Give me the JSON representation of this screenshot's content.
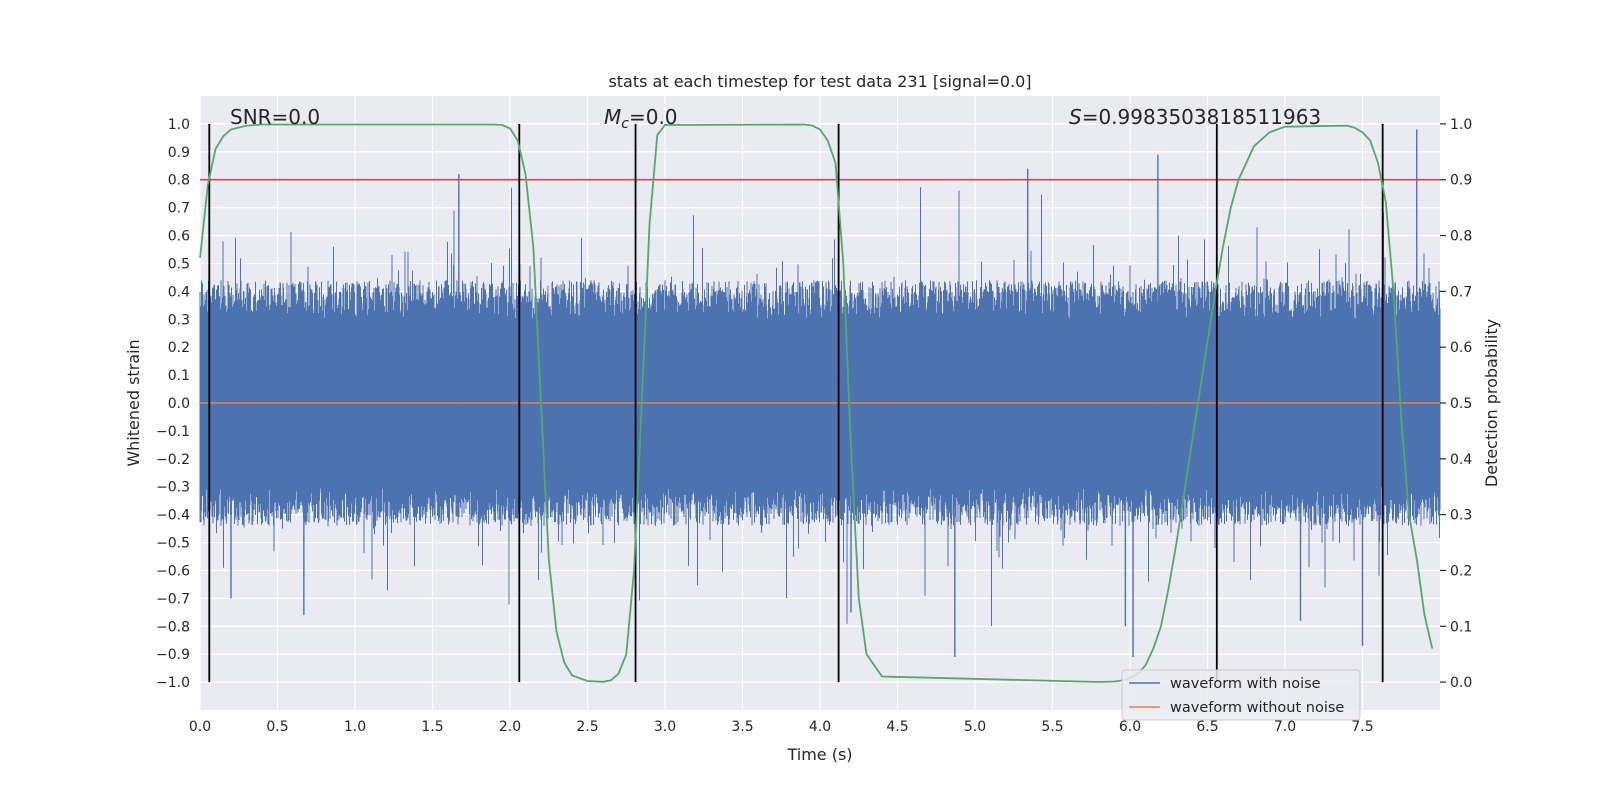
{
  "chart_data": {
    "type": "line",
    "title": "stats at each timestep for test data 231 [signal=0.0]",
    "xlabel": "Time (s)",
    "ylabel": "Whitened strain",
    "y2label": "Detection probability",
    "xlim": [
      0.0,
      8.0
    ],
    "ylim": [
      -1.1,
      1.1
    ],
    "y2lim": [
      -0.05,
      1.05
    ],
    "x_ticks": [
      0.0,
      0.5,
      1.0,
      1.5,
      2.0,
      2.5,
      3.0,
      3.5,
      4.0,
      4.5,
      5.0,
      5.5,
      6.0,
      6.5,
      7.0,
      7.5
    ],
    "x_tick_labels": [
      "0.0",
      "0.5",
      "1.0",
      "1.5",
      "2.0",
      "2.5",
      "3.0",
      "3.5",
      "4.0",
      "4.5",
      "5.0",
      "5.5",
      "6.0",
      "6.5",
      "7.0",
      "7.5"
    ],
    "y_ticks": [
      1.0,
      0.9,
      0.8,
      0.7,
      0.6,
      0.5,
      0.4,
      0.3,
      0.2,
      0.1,
      0.0,
      -0.1,
      -0.2,
      -0.3,
      -0.4,
      -0.5,
      -0.6,
      -0.7,
      -0.8,
      -0.9,
      -1.0
    ],
    "y_tick_labels": [
      "1.0",
      "0.9",
      "0.8",
      "0.7",
      "0.6",
      "0.5",
      "0.4",
      "0.3",
      "0.2",
      "0.1",
      "0.0",
      "−0.1",
      "−0.2",
      "−0.3",
      "−0.4",
      "−0.5",
      "−0.6",
      "−0.7",
      "−0.8",
      "−0.9",
      "−1.0"
    ],
    "y2_ticks": [
      1.0,
      0.9,
      0.8,
      0.7,
      0.6,
      0.5,
      0.4,
      0.3,
      0.2,
      0.1,
      0.0
    ],
    "y2_tick_labels": [
      "1.0",
      "0.9",
      "0.8",
      "0.7",
      "0.6",
      "0.5",
      "0.4",
      "0.3",
      "0.2",
      "0.1",
      "0.0"
    ],
    "annotations": {
      "snr": "SNR=0.0",
      "mc_symbol": "M",
      "mc_sub": "c",
      "mc_value": "=0.0",
      "s_symbol": "S",
      "s_value": "=0.9983503818511963"
    },
    "threshold_line": {
      "y2": 0.9,
      "color": "#c44e52"
    },
    "vertical_lines_x": [
      0.06,
      2.06,
      2.81,
      4.12,
      6.56,
      7.63
    ],
    "noise_series": {
      "name": "waveform with noise",
      "color": "#4c72b0",
      "description": "dense noise roughly within ±0.4 with spikes up to ~0.98 and down to ~−0.91",
      "envelope": 0.4,
      "spikes": [
        {
          "x": 1.67,
          "y": 0.82
        },
        {
          "x": 0.67,
          "y": -0.76
        },
        {
          "x": 4.2,
          "y": -0.75
        },
        {
          "x": 5.34,
          "y": 0.84
        },
        {
          "x": 6.18,
          "y": 0.89
        },
        {
          "x": 7.85,
          "y": 0.98
        },
        {
          "x": 4.87,
          "y": -0.91
        },
        {
          "x": 6.02,
          "y": -0.91
        },
        {
          "x": 7.5,
          "y": -0.87
        },
        {
          "x": 7.1,
          "y": -0.78
        },
        {
          "x": 5.97,
          "y": -0.8
        },
        {
          "x": 0.2,
          "y": -0.7
        }
      ]
    },
    "clean_series": {
      "name": "waveform without noise",
      "color": "#dd8452",
      "value": 0.0
    },
    "probability_series": {
      "name": "detection probability",
      "color": "#55a868",
      "x": [
        0.0,
        0.05,
        0.1,
        0.15,
        0.2,
        0.3,
        0.4,
        1.9,
        1.95,
        2.0,
        2.05,
        2.1,
        2.15,
        2.2,
        2.25,
        2.3,
        2.35,
        2.4,
        2.5,
        2.6,
        2.65,
        2.7,
        2.75,
        2.8,
        2.85,
        2.9,
        2.95,
        3.0,
        3.9,
        3.95,
        4.0,
        4.05,
        4.1,
        4.15,
        4.2,
        4.25,
        4.3,
        4.4,
        5.8,
        5.9,
        5.95,
        6.0,
        6.05,
        6.1,
        6.15,
        6.2,
        6.25,
        6.3,
        6.35,
        6.4,
        6.45,
        6.5,
        6.55,
        6.6,
        6.65,
        6.7,
        6.8,
        6.9,
        7.0,
        7.4,
        7.45,
        7.5,
        7.55,
        7.6,
        7.65,
        7.7,
        7.75,
        7.8,
        7.85,
        7.9,
        7.95
      ],
      "y": [
        0.76,
        0.89,
        0.955,
        0.978,
        0.99,
        0.997,
        0.999,
        0.999,
        0.998,
        0.992,
        0.97,
        0.91,
        0.78,
        0.5,
        0.22,
        0.09,
        0.035,
        0.012,
        0.002,
        0.0005,
        0.003,
        0.015,
        0.05,
        0.2,
        0.5,
        0.82,
        0.98,
        0.998,
        0.999,
        0.997,
        0.99,
        0.97,
        0.93,
        0.75,
        0.42,
        0.15,
        0.05,
        0.01,
        0.0001,
        0.001,
        0.003,
        0.007,
        0.015,
        0.03,
        0.06,
        0.1,
        0.17,
        0.25,
        0.34,
        0.43,
        0.52,
        0.61,
        0.7,
        0.78,
        0.85,
        0.9,
        0.96,
        0.985,
        0.995,
        0.997,
        0.993,
        0.985,
        0.97,
        0.93,
        0.86,
        0.7,
        0.47,
        0.3,
        0.22,
        0.12,
        0.06
      ]
    },
    "legend": {
      "placement": "lower-right",
      "entries": [
        {
          "label": "waveform with noise",
          "color": "#4c72b0"
        },
        {
          "label": "waveform without noise",
          "color": "#dd8452"
        }
      ]
    },
    "grid": true,
    "style": {
      "plot_background": "#eaeaf2",
      "grid_color": "#ffffff"
    }
  }
}
